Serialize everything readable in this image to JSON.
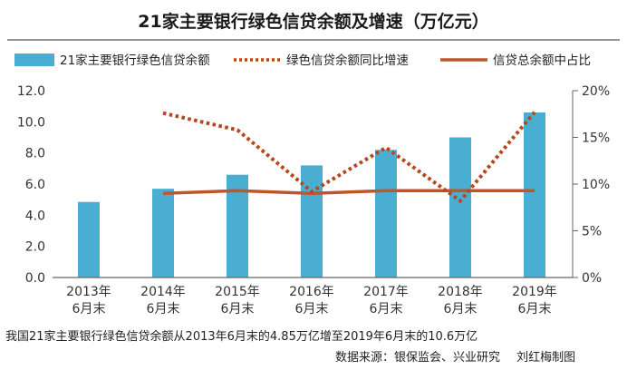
{
  "chart_data": {
    "type": "bar+line",
    "title": "21家主要银行绿色信贷余额及增速（万亿元）",
    "categories": [
      [
        "2013年",
        "6月末"
      ],
      [
        "2014年",
        "6月末"
      ],
      [
        "2015年",
        "6月末"
      ],
      [
        "2016年",
        "6月末"
      ],
      [
        "2017年",
        "6月末"
      ],
      [
        "2018年",
        "6月末"
      ],
      [
        "2019年",
        "6月末"
      ]
    ],
    "series": [
      {
        "name": "21家主要银行绿色信贷余额",
        "kind": "bar",
        "axis": "left",
        "color": "#4aaed2",
        "values": [
          4.85,
          5.7,
          6.6,
          7.2,
          8.2,
          9.0,
          10.6
        ]
      },
      {
        "name": "绿色信贷余额同比增速",
        "kind": "line-dotted",
        "axis": "right",
        "color": "#b8451c",
        "values": [
          null,
          17.6,
          15.8,
          9.2,
          13.9,
          8.2,
          17.7
        ]
      },
      {
        "name": "信贷总余额中占比",
        "kind": "line",
        "axis": "right",
        "color": "#c0552b",
        "values": [
          null,
          9.0,
          9.3,
          9.0,
          9.3,
          9.3,
          9.3
        ]
      }
    ],
    "y_left": {
      "lim": [
        0,
        12
      ],
      "ticks": [
        "0.0",
        "2.0",
        "4.0",
        "6.0",
        "8.0",
        "10.0",
        "12.0"
      ]
    },
    "y_right": {
      "lim": [
        0,
        20
      ],
      "ticks": [
        "0%",
        "5%",
        "10%",
        "15%",
        "20%"
      ]
    },
    "legend_position": "top",
    "grid": false
  },
  "footnote": "我国21家主要银行绿色信贷余额从2013年6月末的4.85万亿增至2019年6月末的10.6万亿",
  "source": "数据来源：银保监会、兴业研究",
  "author": "刘红梅制图"
}
